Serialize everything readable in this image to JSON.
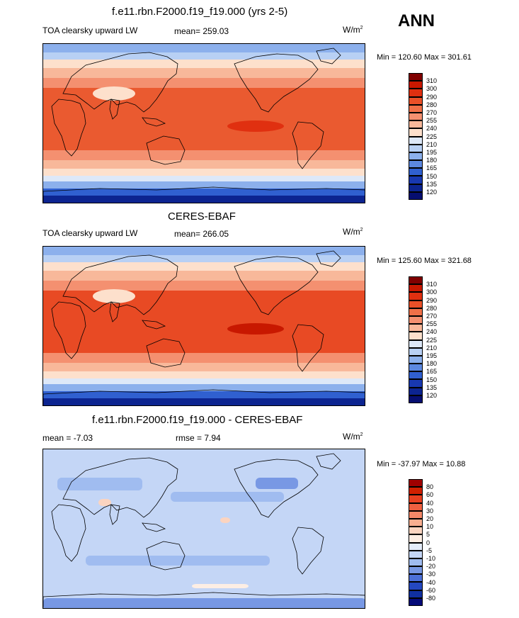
{
  "season": "ANN",
  "panels": [
    {
      "title": "f.e11.rbn.F2000.f19_f19.000 (yrs 2-5)",
      "left_label": "TOA clearsky upward LW",
      "mid_label": "mean= 259.03",
      "unit": "W/m",
      "unit_exp": "2",
      "minmax": "Min = 120.60 Max = 301.61",
      "map_variant": "model"
    },
    {
      "title": "CERES-EBAF",
      "left_label": "TOA clearsky upward LW",
      "mid_label": "mean= 266.05",
      "unit": "W/m",
      "unit_exp": "2",
      "minmax": "Min = 125.60 Max = 321.68",
      "map_variant": "obs"
    },
    {
      "title": "f.e11.rbn.F2000.f19_f19.000 - CERES-EBAF",
      "left_label": "mean =  -7.03",
      "mid_label": "rmse =   7.94",
      "unit": "W/m",
      "unit_exp": "2",
      "minmax": "Min = -37.97 Max =  10.88",
      "map_variant": "diff"
    }
  ],
  "chart_data": [
    {
      "type": "heatmap",
      "title": "f.e11.rbn.F2000.f19_f19.000 (yrs 2-5)",
      "field": "TOA clearsky upward LW",
      "units": "W/m2",
      "mean": 259.03,
      "min": 120.6,
      "max": 301.61,
      "colorbar_levels": [
        310,
        300,
        290,
        280,
        270,
        255,
        240,
        225,
        210,
        195,
        180,
        165,
        150,
        135,
        120
      ],
      "colorbar_colors": [
        "#800000",
        "#c81800",
        "#e03010",
        "#ea5028",
        "#f07048",
        "#f49070",
        "#f8b89a",
        "#fde0cc",
        "#dde8f8",
        "#b8d0f4",
        "#8cb0ec",
        "#5c88e0",
        "#3060d0",
        "#1838b0",
        "#0c2490",
        "#060e70"
      ]
    },
    {
      "type": "heatmap",
      "title": "CERES-EBAF",
      "field": "TOA clearsky upward LW",
      "units": "W/m2",
      "mean": 266.05,
      "min": 125.6,
      "max": 321.68,
      "colorbar_levels": [
        310,
        300,
        290,
        280,
        270,
        255,
        240,
        225,
        210,
        195,
        180,
        165,
        150,
        135,
        120
      ],
      "colorbar_colors": [
        "#800000",
        "#c81800",
        "#e03010",
        "#ea5028",
        "#f07048",
        "#f49070",
        "#f8b89a",
        "#fde0cc",
        "#dde8f8",
        "#b8d0f4",
        "#8cb0ec",
        "#5c88e0",
        "#3060d0",
        "#1838b0",
        "#0c2490",
        "#060e70"
      ]
    },
    {
      "type": "heatmap",
      "title": "f.e11.rbn.F2000.f19_f19.000 - CERES-EBAF",
      "field": "difference",
      "units": "W/m2",
      "mean": -7.03,
      "rmse": 7.94,
      "min": -37.97,
      "max": 10.88,
      "colorbar_levels": [
        80,
        60,
        40,
        30,
        20,
        10,
        5,
        0,
        -5,
        -10,
        -20,
        -30,
        -40,
        -60,
        -80
      ],
      "colorbar_colors": [
        "#a00000",
        "#d02000",
        "#e84020",
        "#f06040",
        "#f48868",
        "#f8ae90",
        "#fbd4c0",
        "#fdeee4",
        "#e4ecfa",
        "#c4d6f6",
        "#a0bcf0",
        "#7898e4",
        "#4c70d8",
        "#2448c0",
        "#1030a0",
        "#040a78"
      ]
    }
  ]
}
